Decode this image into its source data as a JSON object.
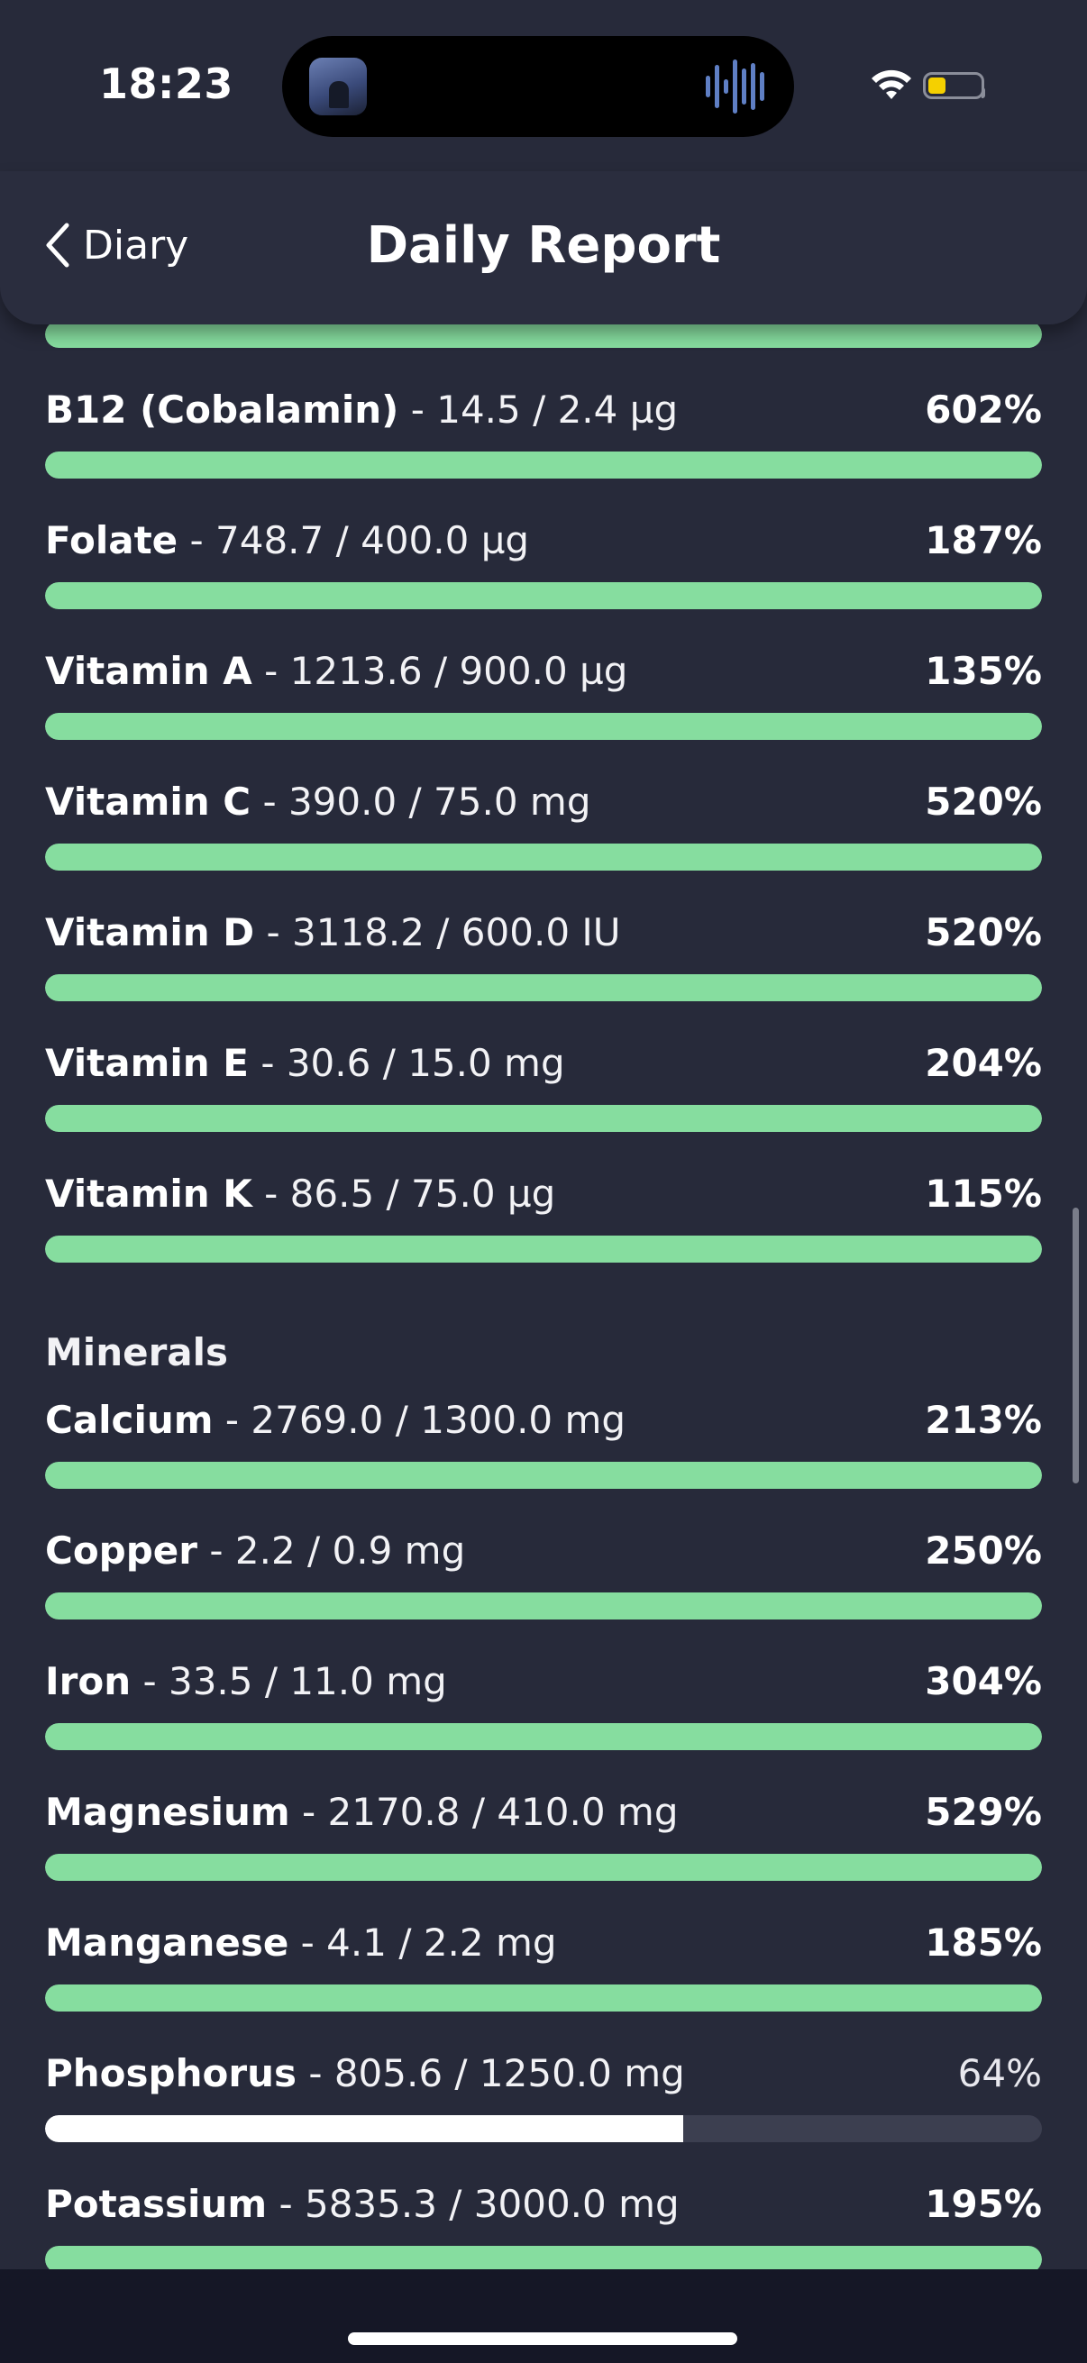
{
  "status_bar": {
    "time": "18:23"
  },
  "header": {
    "back_label": "Diary",
    "title": "Daily Report"
  },
  "colors": {
    "background": "#272a3a",
    "bar_green": "#86dd9f",
    "bar_white": "#ffffff",
    "bar_track": "#3c3f50",
    "battery": "#f5d000"
  },
  "top_partial_bar": {
    "percent_fill": 100,
    "color": "green"
  },
  "vitamins": [
    {
      "name": "B12 (Cobalamin)",
      "values": " - 14.5 / 2.4 µg",
      "percent": "602%",
      "fill": 100,
      "color": "green"
    },
    {
      "name": "Folate",
      "values": " - 748.7 / 400.0 µg",
      "percent": "187%",
      "fill": 100,
      "color": "green"
    },
    {
      "name": "Vitamin A",
      "values": " - 1213.6 / 900.0 µg",
      "percent": "135%",
      "fill": 100,
      "color": "green"
    },
    {
      "name": "Vitamin C",
      "values": " - 390.0 / 75.0 mg",
      "percent": "520%",
      "fill": 100,
      "color": "green"
    },
    {
      "name": "Vitamin D",
      "values": " - 3118.2 / 600.0 IU",
      "percent": "520%",
      "fill": 100,
      "color": "green"
    },
    {
      "name": "Vitamin E",
      "values": " - 30.6 / 15.0 mg",
      "percent": "204%",
      "fill": 100,
      "color": "green"
    },
    {
      "name": "Vitamin K",
      "values": " - 86.5 / 75.0 µg",
      "percent": "115%",
      "fill": 100,
      "color": "green"
    }
  ],
  "minerals_title": "Minerals",
  "minerals": [
    {
      "name": "Calcium",
      "values": " - 2769.0 / 1300.0 mg",
      "percent": "213%",
      "fill": 100,
      "color": "green"
    },
    {
      "name": "Copper",
      "values": " - 2.2 / 0.9 mg",
      "percent": "250%",
      "fill": 100,
      "color": "green"
    },
    {
      "name": "Iron",
      "values": " - 33.5 / 11.0 mg",
      "percent": "304%",
      "fill": 100,
      "color": "green"
    },
    {
      "name": "Magnesium",
      "values": " - 2170.8 / 410.0 mg",
      "percent": "529%",
      "fill": 100,
      "color": "green"
    },
    {
      "name": "Manganese",
      "values": " - 4.1 / 2.2 mg",
      "percent": "185%",
      "fill": 100,
      "color": "green"
    },
    {
      "name": "Phosphorus",
      "values": " - 805.6 / 1250.0 mg",
      "percent": "64%",
      "fill": 64,
      "color": "white"
    },
    {
      "name": "Potassium",
      "values": " - 5835.3 / 3000.0 mg",
      "percent": "195%",
      "fill": 100,
      "color": "green"
    }
  ]
}
